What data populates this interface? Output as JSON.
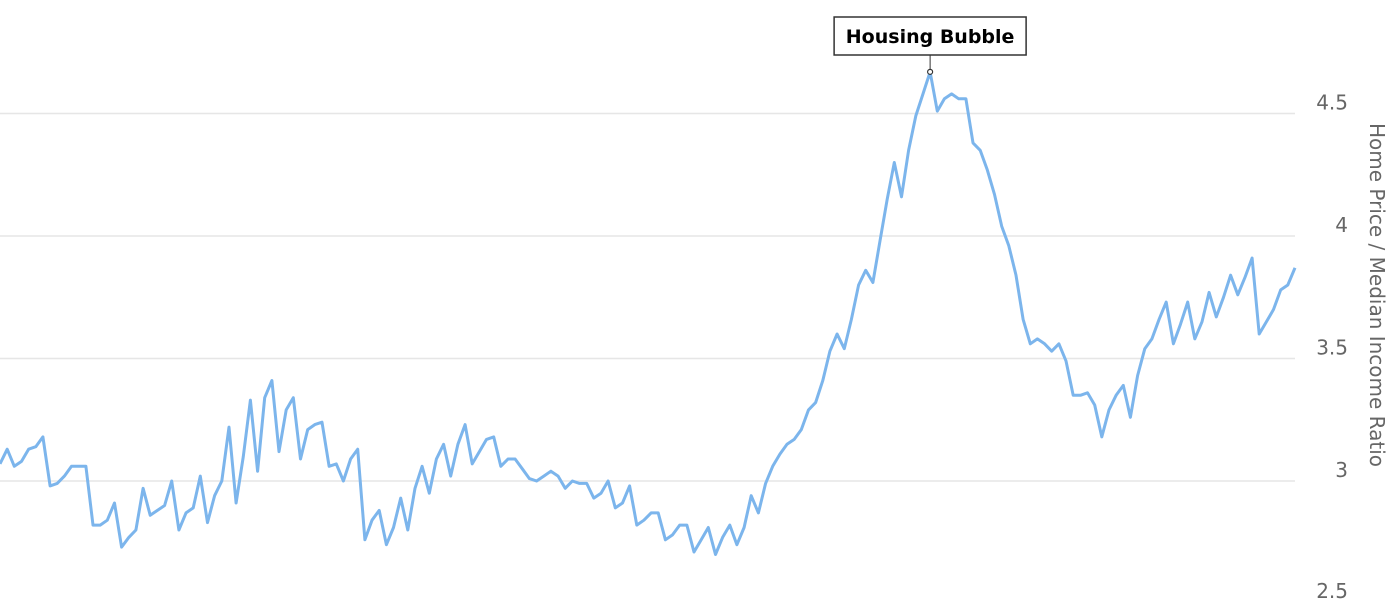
{
  "chart_data": {
    "type": "line",
    "title": "",
    "xlabel": "",
    "ylabel": "Home Price / Median Income Ratio",
    "ylim": [
      2.5,
      4.7
    ],
    "yticks": [
      "2.5",
      "3",
      "3.5",
      "4",
      "4.5"
    ],
    "ytick_values": [
      2.5,
      3,
      3.5,
      4,
      4.5
    ],
    "y_axis_position": "right",
    "grid": "horizontal",
    "legend": "none",
    "line_color": "#7cb5ec",
    "annotation": {
      "text": "Housing Bubble",
      "at": "maximum"
    },
    "series": [
      {
        "values": [
          3.07,
          3.13,
          3.06,
          3.08,
          3.13,
          3.14,
          3.18,
          2.98,
          2.99,
          3.02,
          3.06,
          3.06,
          3.06,
          2.82,
          2.82,
          2.84,
          2.91,
          2.73,
          2.77,
          2.8,
          2.97,
          2.86,
          2.88,
          2.9,
          3.0,
          2.8,
          2.87,
          2.89,
          3.02,
          2.83,
          2.94,
          3.0,
          3.22,
          2.91,
          3.1,
          3.33,
          3.04,
          3.34,
          3.41,
          3.12,
          3.29,
          3.34,
          3.09,
          3.21,
          3.23,
          3.24,
          3.06,
          3.07,
          3.0,
          3.09,
          3.13,
          2.76,
          2.84,
          2.88,
          2.74,
          2.81,
          2.93,
          2.8,
          2.97,
          3.06,
          2.95,
          3.09,
          3.15,
          3.02,
          3.15,
          3.23,
          3.07,
          3.12,
          3.17,
          3.18,
          3.06,
          3.09,
          3.09,
          3.05,
          3.01,
          3.0,
          3.02,
          3.04,
          3.02,
          2.97,
          3.0,
          2.99,
          2.99,
          2.93,
          2.95,
          3.0,
          2.89,
          2.91,
          2.98,
          2.82,
          2.84,
          2.87,
          2.87,
          2.76,
          2.78,
          2.82,
          2.82,
          2.71,
          2.76,
          2.81,
          2.7,
          2.77,
          2.82,
          2.74,
          2.81,
          2.94,
          2.87,
          2.99,
          3.06,
          3.11,
          3.15,
          3.17,
          3.21,
          3.29,
          3.32,
          3.41,
          3.53,
          3.6,
          3.54,
          3.66,
          3.8,
          3.86,
          3.81,
          3.98,
          4.15,
          4.3,
          4.16,
          4.35,
          4.49,
          4.58,
          4.67,
          4.51,
          4.56,
          4.58,
          4.56,
          4.56,
          4.38,
          4.35,
          4.27,
          4.17,
          4.04,
          3.96,
          3.84,
          3.66,
          3.56,
          3.58,
          3.56,
          3.53,
          3.56,
          3.49,
          3.35,
          3.35,
          3.36,
          3.31,
          3.18,
          3.29,
          3.35,
          3.39,
          3.26,
          3.43,
          3.54,
          3.58,
          3.66,
          3.73,
          3.56,
          3.64,
          3.73,
          3.58,
          3.65,
          3.77,
          3.67,
          3.75,
          3.84,
          3.76,
          3.83,
          3.91,
          3.6,
          3.65,
          3.7,
          3.78,
          3.8,
          3.87
        ]
      }
    ]
  }
}
